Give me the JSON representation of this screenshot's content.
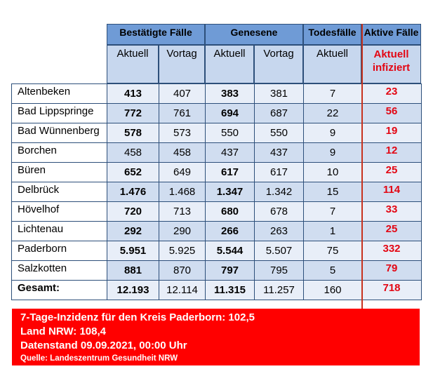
{
  "header": {
    "confirmed": "Bestätigte Fälle",
    "recovered": "Genesene",
    "deaths": "Todesfälle",
    "active": "Aktive Fälle"
  },
  "subheader": {
    "c_current": "Aktuell",
    "c_prev": "Vortag",
    "r_current": "Aktuell",
    "r_prev": "Vortag",
    "d_current": "Aktuell",
    "a_current": "Aktuell infiziert"
  },
  "rows": [
    {
      "name": "Altenbeken",
      "c": "413",
      "cp": "407",
      "r": "383",
      "rp": "381",
      "d": "7",
      "a": "23",
      "r_bold": true
    },
    {
      "name": "Bad Lippspringe",
      "c": "772",
      "cp": "761",
      "r": "694",
      "rp": "687",
      "d": "22",
      "a": "56",
      "r_bold": true
    },
    {
      "name": "Bad Wünnenberg",
      "c": "578",
      "cp": "573",
      "r": "550",
      "rp": "550",
      "d": "9",
      "a": "19",
      "r_bold": false
    },
    {
      "name": "Borchen",
      "c": "458",
      "cp": "458",
      "r": "437",
      "rp": "437",
      "d": "9",
      "a": "12",
      "r_bold": false,
      "c_bold": false
    },
    {
      "name": "Büren",
      "c": "652",
      "cp": "649",
      "r": "617",
      "rp": "617",
      "d": "10",
      "a": "25",
      "r_bold": true
    },
    {
      "name": "Delbrück",
      "c": "1.476",
      "cp": "1.468",
      "r": "1.347",
      "rp": "1.342",
      "d": "15",
      "a": "114",
      "r_bold": true
    },
    {
      "name": "Hövelhof",
      "c": "720",
      "cp": "713",
      "r": "680",
      "rp": "678",
      "d": "7",
      "a": "33",
      "r_bold": true
    },
    {
      "name": "Lichtenau",
      "c": "292",
      "cp": "290",
      "r": "266",
      "rp": "263",
      "d": "1",
      "a": "25",
      "r_bold": true
    },
    {
      "name": "Paderborn",
      "c": "5.951",
      "cp": "5.925",
      "r": "5.544",
      "rp": "5.507",
      "d": "75",
      "a": "332",
      "r_bold": true
    },
    {
      "name": "Salzkotten",
      "c": "881",
      "cp": "870",
      "r": "797",
      "rp": "795",
      "d": "5",
      "a": "79",
      "r_bold": true
    },
    {
      "name": "Gesamt:",
      "c": "12.193",
      "cp": "12.114",
      "r": "11.315",
      "rp": "11.257",
      "d": "160",
      "a": "718",
      "r_bold": true
    }
  ],
  "footer": {
    "line1": "7-Tage-Inzidenz für den Kreis Paderborn: 102,5",
    "line2": "Land NRW: 108,4",
    "line3": "Datenstand 09.09.2021, 00:00 Uhr",
    "source": "Quelle: Landeszentrum Gesundheit NRW"
  },
  "colors": {
    "header_blue": "#6f9bd6",
    "row_light": "#e8eef8",
    "row_dark": "#d0ddf0",
    "accent_red": "#e30613",
    "footer_red": "#ff0000"
  }
}
